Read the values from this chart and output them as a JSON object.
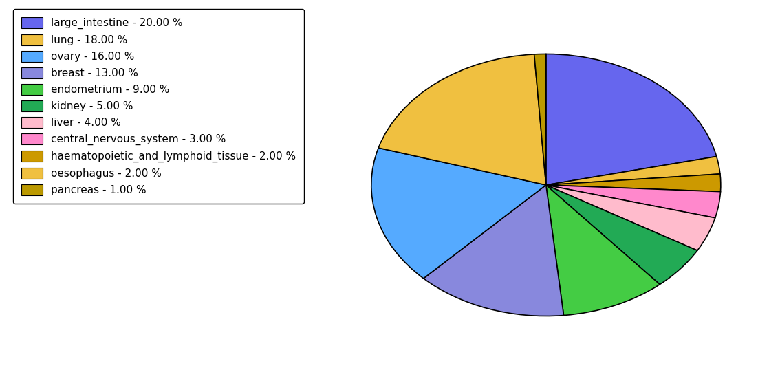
{
  "labels": [
    "large_intestine",
    "lung",
    "ovary",
    "breast",
    "endometrium",
    "kidney",
    "liver",
    "central_nervous_system",
    "haematopoietic_and_lymphoid_tissue",
    "oesophagus",
    "pancreas"
  ],
  "values": [
    20,
    18,
    16,
    13,
    9,
    5,
    4,
    3,
    2,
    2,
    1
  ],
  "colors": [
    "#6666ee",
    "#f0c040",
    "#55aaff",
    "#8888dd",
    "#44cc44",
    "#22aa55",
    "#ffbbcc",
    "#ff88cc",
    "#cc9900",
    "#f0c040",
    "#bb9900"
  ],
  "legend_labels": [
    "large_intestine - 20.00 %",
    "lung - 18.00 %",
    "ovary - 16.00 %",
    "breast - 13.00 %",
    "endometrium - 9.00 %",
    "kidney - 5.00 %",
    "liver - 4.00 %",
    "central_nervous_system - 3.00 %",
    "haematopoietic_and_lymphoid_tissue - 2.00 %",
    "oesophagus - 2.00 %",
    "pancreas - 1.00 %"
  ],
  "pie_order": [
    0,
    9,
    8,
    7,
    6,
    5,
    4,
    3,
    2,
    1,
    10
  ],
  "startangle": 90,
  "figsize": [
    11.34,
    5.38
  ],
  "dpi": 100,
  "aspect_ratio": 0.75
}
